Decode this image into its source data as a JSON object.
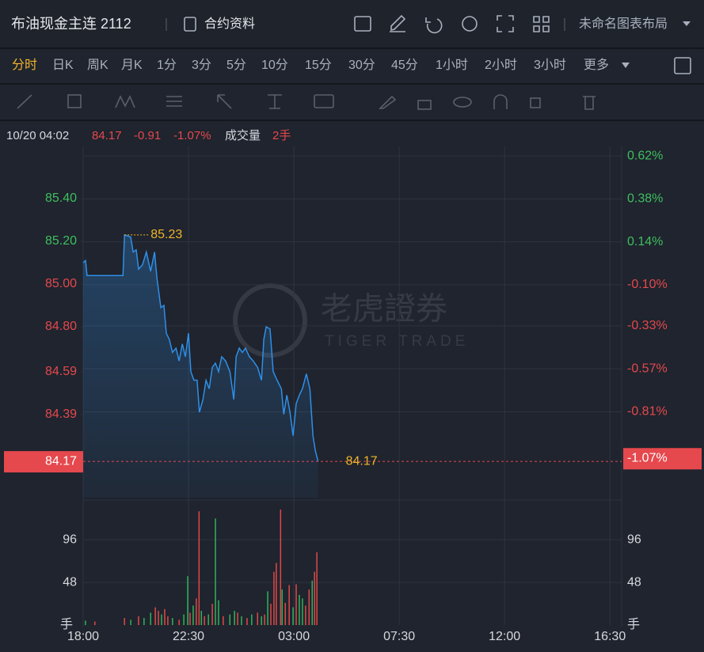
{
  "header": {
    "title": "布油现金主连 2112",
    "contract_info": "合约资料",
    "layout_name": "未命名图表布局"
  },
  "periods": {
    "items": [
      "分时",
      "日K",
      "周K",
      "月K",
      "1分",
      "3分",
      "5分",
      "10分",
      "15分",
      "30分",
      "45分",
      "1小时",
      "2小时",
      "3小时",
      "更多"
    ],
    "active": 0
  },
  "info": {
    "datetime": "10/20 04:02",
    "price": "84.17",
    "change": "-0.91",
    "change_pct": "-1.07%",
    "volume_label": "成交量",
    "volume": "2手"
  },
  "watermark": {
    "name": "老虎證券",
    "en": "TIGER TRADE"
  },
  "chart_data": [
    {
      "type": "line",
      "color": "#2f8fe8",
      "x": [
        0,
        6,
        10,
        102,
        106,
        122,
        128,
        136,
        142,
        152,
        162,
        173,
        183,
        189,
        199,
        207,
        213,
        221,
        229,
        238,
        246,
        254,
        262,
        270,
        276,
        284,
        292,
        298,
        307,
        315,
        323,
        331,
        339,
        347,
        355,
        365,
        376,
        386,
        392,
        400,
        408,
        416,
        426,
        436,
        447,
        457,
        463,
        469,
        479,
        487,
        497,
        508,
        514,
        522,
        530,
        538,
        546,
        554,
        562,
        572,
        581,
        589,
        595,
        602
      ],
      "values": [
        85.1,
        85.11,
        85.04,
        85.04,
        85.23,
        85.22,
        85.15,
        85.16,
        85.07,
        85.09,
        85.15,
        85.06,
        85.15,
        85.03,
        84.89,
        84.9,
        84.77,
        84.74,
        84.68,
        84.7,
        84.64,
        84.72,
        84.66,
        84.77,
        84.59,
        84.55,
        84.55,
        84.4,
        84.46,
        84.55,
        84.51,
        84.61,
        84.63,
        84.59,
        84.66,
        84.64,
        84.59,
        84.46,
        84.66,
        84.7,
        84.68,
        84.7,
        84.66,
        84.64,
        84.61,
        84.55,
        84.74,
        84.8,
        84.79,
        84.59,
        84.55,
        84.51,
        84.39,
        84.48,
        84.4,
        84.29,
        84.44,
        84.48,
        84.51,
        84.58,
        84.51,
        84.29,
        84.22,
        84.17
      ],
      "xlim": [
        0,
        1380
      ],
      "ylim": [
        84.0,
        85.65
      ],
      "yticks": [
        {
          "value": 85.4,
          "label": "85.40"
        },
        {
          "value": 85.2,
          "label": "85.20"
        },
        {
          "value": 85.0,
          "label": "85.00"
        },
        {
          "value": 84.8,
          "label": "84.80"
        },
        84.59,
        84.39
      ],
      "y2lim": [
        -1.29,
        0.68
      ],
      "y2ticks": [
        {
          "value": 0.62,
          "label": "0.62%"
        },
        {
          "value": 0.38,
          "label": "0.38%"
        },
        {
          "value": 0.14,
          "label": "0.14%"
        },
        {
          "value": -0.1,
          "label": "-0.10%"
        },
        {
          "value": -0.33,
          "label": "-0.33%"
        },
        {
          "value": -0.57,
          "label": "-0.57%"
        },
        {
          "value": -0.81,
          "label": "-0.81%"
        }
      ],
      "max_value": 85.23,
      "last_price": 84.17,
      "last_pct": {
        "value": -1.07,
        "label": "-1.07%"
      },
      "grid": true
    },
    {
      "type": "bar",
      "unit": "手",
      "x": [
        6,
        30,
        106,
        122,
        142,
        156,
        173,
        185,
        193,
        201,
        209,
        217,
        229,
        246,
        258,
        268,
        274,
        282,
        290,
        297,
        303,
        311,
        321,
        331,
        339,
        347,
        359,
        376,
        388,
        396,
        406,
        420,
        432,
        447,
        457,
        465,
        473,
        481,
        489,
        495,
        506,
        510,
        518,
        528,
        538,
        546,
        554,
        562,
        570,
        579,
        587,
        593,
        599
      ],
      "values": [
        5,
        4,
        8,
        6,
        10,
        8,
        14,
        20,
        16,
        12,
        18,
        10,
        8,
        6,
        12,
        55,
        14,
        22,
        30,
        128,
        16,
        10,
        12,
        24,
        120,
        28,
        10,
        12,
        16,
        14,
        10,
        8,
        12,
        14,
        10,
        12,
        38,
        24,
        60,
        70,
        130,
        40,
        25,
        45,
        20,
        46,
        34,
        30,
        22,
        40,
        50,
        60,
        82
      ],
      "colors": [
        "#2fb35a",
        "#e04848",
        "#e04848",
        "#2fb35a",
        "#e04848",
        "#2fb35a",
        "#2fb35a",
        "#e04848",
        "#e04848",
        "#2fb35a",
        "#e04848",
        "#e04848",
        "#2fb35a",
        "#e04848",
        "#2fb35a",
        "#2fb35a",
        "#e04848",
        "#2fb35a",
        "#e04848",
        "#e04848",
        "#2fb35a",
        "#e04848",
        "#2fb35a",
        "#e04848",
        "#2fb35a",
        "#2fb35a",
        "#e04848",
        "#2fb35a",
        "#2fb35a",
        "#e04848",
        "#2fb35a",
        "#e04848",
        "#2fb35a",
        "#e04848",
        "#2fb35a",
        "#e04848",
        "#2fb35a",
        "#e04848",
        "#e04848",
        "#e04848",
        "#e04848",
        "#2fb35a",
        "#e04848",
        "#e04848",
        "#2fb35a",
        "#e04848",
        "#2fb35a",
        "#2fb35a",
        "#e04848",
        "#e04848",
        "#2fb35a",
        "#e04848",
        "#e04848"
      ],
      "xlim": [
        0,
        1380
      ],
      "ylim": [
        0,
        138
      ],
      "yticks": [
        48,
        96
      ],
      "xticks": [
        {
          "value": 0,
          "label": "18:00"
        },
        {
          "value": 270,
          "label": "22:30"
        },
        {
          "value": 540,
          "label": "03:00"
        },
        {
          "value": 810,
          "label": "07:30"
        },
        {
          "value": 1080,
          "label": "12:00"
        },
        {
          "value": 1350,
          "label": "16:30"
        }
      ]
    }
  ]
}
